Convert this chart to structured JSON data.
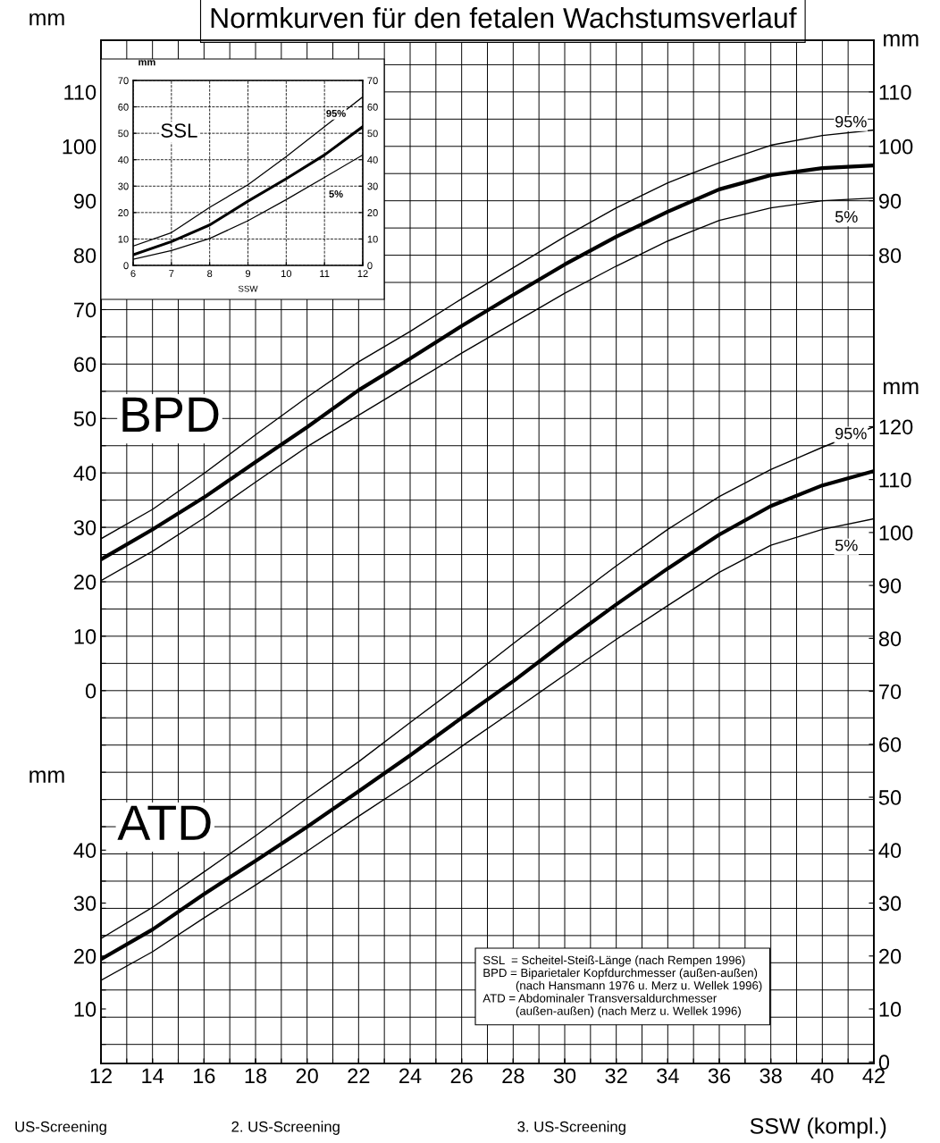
{
  "chart_data": [
    {
      "type": "line",
      "title": "Normkurven für den fetalen Wachstumsverlauf",
      "ylabel": "mm",
      "y2label": "mm",
      "tick_labels": "y",
      "grid": true,
      "x": [
        12,
        14,
        16,
        18,
        20,
        22,
        24,
        26,
        28,
        30,
        32,
        34,
        36,
        38,
        40,
        42
      ],
      "xlim": [
        12,
        42
      ],
      "xticks": [
        {
          "value": 12,
          "label": null
        },
        {
          "value": 13,
          "label": null
        },
        {
          "value": 14,
          "label": null
        },
        {
          "value": 15,
          "label": null
        },
        {
          "value": 16,
          "label": null
        },
        {
          "value": 17,
          "label": null
        },
        {
          "value": 18,
          "label": null
        },
        {
          "value": 19,
          "label": null
        },
        {
          "value": 20,
          "label": null
        },
        {
          "value": 21,
          "label": null
        },
        {
          "value": 22,
          "label": null
        },
        {
          "value": 23,
          "label": null
        },
        {
          "value": 24,
          "label": null
        },
        {
          "value": 25,
          "label": null
        },
        {
          "value": 26,
          "label": null
        },
        {
          "value": 27,
          "label": null
        },
        {
          "value": 28,
          "label": null
        },
        {
          "value": 29,
          "label": null
        },
        {
          "value": 30,
          "label": null
        },
        {
          "value": 31,
          "label": null
        },
        {
          "value": 32,
          "label": null
        },
        {
          "value": 33,
          "label": null
        },
        {
          "value": 34,
          "label": null
        },
        {
          "value": 35,
          "label": null
        },
        {
          "value": 36,
          "label": null
        },
        {
          "value": 37,
          "label": null
        },
        {
          "value": 38,
          "label": null
        },
        {
          "value": 39,
          "label": null
        },
        {
          "value": 40,
          "label": null
        },
        {
          "value": 41,
          "label": null
        },
        {
          "value": 42,
          "label": null
        }
      ],
      "ylim": [
        -68.5,
        119.5
      ],
      "yticks": [
        {
          "value": -65,
          "label": null
        },
        {
          "value": -60,
          "label": null
        },
        {
          "value": -55,
          "label": null
        },
        {
          "value": -50,
          "label": null
        },
        {
          "value": -45,
          "label": null
        },
        {
          "value": -40,
          "label": null
        },
        {
          "value": -35,
          "label": null
        },
        {
          "value": -30,
          "label": null
        },
        {
          "value": -25,
          "label": null
        },
        {
          "value": -20,
          "label": null
        },
        {
          "value": -15,
          "label": null
        },
        {
          "value": -10,
          "label": null
        },
        {
          "value": -5,
          "label": null
        },
        0,
        {
          "value": 5,
          "label": null
        },
        10,
        {
          "value": 15,
          "label": null
        },
        20,
        {
          "value": 25,
          "label": null
        },
        30,
        {
          "value": 35,
          "label": null
        },
        40,
        {
          "value": 45,
          "label": null
        },
        50,
        {
          "value": 55,
          "label": null
        },
        60,
        {
          "value": 65,
          "label": null
        },
        70,
        {
          "value": 75,
          "label": null
        },
        80,
        {
          "value": 85,
          "label": null
        },
        90,
        {
          "value": 95,
          "label": null
        },
        100,
        {
          "value": 105,
          "label": null
        },
        110,
        {
          "value": 115,
          "label": null
        }
      ],
      "y2lim": [
        -68.5,
        119.5
      ],
      "y2ticks": [
        80,
        90,
        100,
        110
      ],
      "annotations": [
        "BPD"
      ],
      "series": [
        {
          "name": "95%",
          "color": "#000000",
          "values": [
            27.9,
            33.3,
            39.9,
            47.0,
            53.9,
            60.4,
            66.0,
            72.0,
            77.7,
            83.4,
            88.7,
            93.3,
            97.0,
            100.2,
            102.0,
            103.0
          ]
        },
        {
          "color": "#000000",
          "values": [
            24.1,
            29.6,
            35.5,
            42.0,
            48.4,
            55.2,
            61.0,
            67.0,
            72.7,
            78.3,
            83.4,
            88.0,
            92.1,
            94.7,
            96.0,
            96.5
          ]
        },
        {
          "name": "5%",
          "color": "#000000",
          "values": [
            20.2,
            25.6,
            31.7,
            38.3,
            44.8,
            50.6,
            56.3,
            62.0,
            67.5,
            73.0,
            78.0,
            82.6,
            86.4,
            88.7,
            90.0,
            90.5
          ]
        }
      ]
    },
    {
      "type": "line",
      "xlabel": "SSW (kompl.)",
      "ylabel": "mm",
      "y2label": "mm",
      "x": [
        12,
        14,
        16,
        18,
        20,
        22,
        24,
        26,
        28,
        30,
        32,
        34,
        36,
        38,
        40,
        42
      ],
      "xlim": [
        12,
        42
      ],
      "xticks": [
        12,
        14,
        16,
        18,
        20,
        22,
        24,
        26,
        28,
        30,
        32,
        34,
        36,
        38,
        40,
        42
      ],
      "ylim": [
        -0.3,
        193
      ],
      "yticks": [
        10,
        20,
        30,
        40
      ],
      "y2lim": [
        -0.3,
        193
      ],
      "y2ticks": [
        0,
        10,
        20,
        30,
        40,
        50,
        60,
        70,
        80,
        90,
        100,
        110,
        120
      ],
      "annotations": [
        "ATD",
        "SSL  = Scheitel-Steiß-Länge (nach Rempen 1996)\nBPD = Biparietaler Kopfdurchmesser (außen-außen)\n          (nach Hansmann 1976 u. Merz u. Wellek 1996)\nATD = Abdominaler Transversaldurchmesser\n          (außen-außen) (nach Merz u. Wellek 1996)",
        "US-Screening",
        "2. US-Screening",
        "3. US-Screening"
      ],
      "series": [
        {
          "name": "95%",
          "color": "#000000",
          "values": [
            23.3,
            29.2,
            35.9,
            42.7,
            49.8,
            56.7,
            64.1,
            71.4,
            79.0,
            86.4,
            93.7,
            100.6,
            106.8,
            111.9,
            116.1,
            120.0
          ]
        },
        {
          "color": "#000000",
          "values": [
            19.4,
            25.0,
            31.7,
            38.0,
            44.4,
            51.1,
            57.9,
            65.0,
            71.9,
            79.3,
            86.4,
            93.2,
            99.6,
            105.0,
            108.9,
            111.6
          ]
        },
        {
          "name": "5%",
          "color": "#000000",
          "values": [
            15.4,
            20.8,
            27.2,
            33.4,
            39.8,
            46.4,
            52.8,
            59.6,
            66.3,
            73.1,
            79.8,
            86.2,
            92.5,
            97.6,
            100.6,
            102.6
          ]
        }
      ]
    },
    {
      "type": "line",
      "xlabel": "SSW",
      "ylabel": "mm",
      "grid": true,
      "x": [
        6,
        7,
        8,
        9,
        10,
        11,
        12
      ],
      "xlim": [
        6,
        12
      ],
      "xticks": [
        6,
        7,
        8,
        9,
        10,
        11,
        12
      ],
      "ylim": [
        0,
        70
      ],
      "yticks": [
        0,
        10,
        20,
        30,
        40,
        50,
        60,
        70
      ],
      "y2lim": [
        0,
        70
      ],
      "y2ticks": [
        0,
        10,
        20,
        30,
        40,
        50,
        60,
        70
      ],
      "annotations": [
        "SSL"
      ],
      "series": [
        {
          "name": "95%",
          "color": "#000000",
          "values": [
            7.3,
            12.4,
            22.0,
            30.5,
            41.2,
            52.5,
            63.8
          ]
        },
        {
          "color": "#000000",
          "values": [
            4.0,
            9.0,
            15.3,
            24.3,
            32.8,
            41.8,
            52.5
          ]
        },
        {
          "name": "5%",
          "color": "#000000",
          "values": [
            2.3,
            5.6,
            10.2,
            16.9,
            24.9,
            33.3,
            41.8
          ]
        }
      ]
    }
  ]
}
